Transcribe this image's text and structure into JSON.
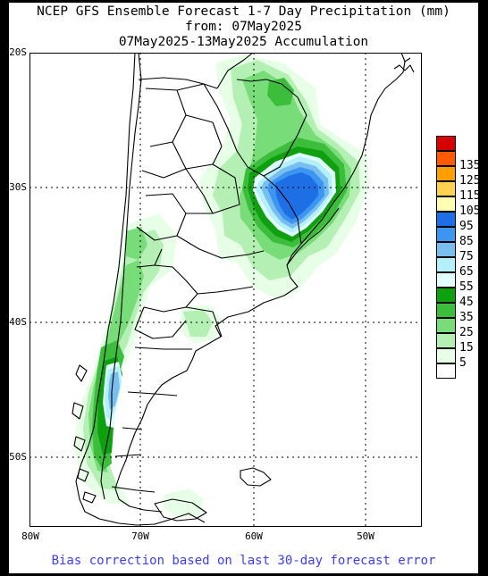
{
  "title": {
    "line1": "NCEP GFS Ensemble Forecast 1-7 Day Precipitation (mm)",
    "line2": "from: 07May2025",
    "line3": "07May2025-13May2025 Accumulation"
  },
  "map": {
    "region": "southern South America",
    "lat_labels": [
      "20S",
      "30S",
      "40S",
      "50S"
    ],
    "lon_labels": [
      "80W",
      "70W",
      "60W",
      "50W"
    ],
    "precip_maximum_region": "southern Brazil / Uruguay, about 95 mm",
    "secondary_maximum_region": "southern Chile, about 65-75 mm"
  },
  "legend": {
    "bins": [
      {
        "label": "",
        "color": "#d70000"
      },
      {
        "label": "135",
        "color": "#ff5a00"
      },
      {
        "label": "125",
        "color": "#ffa000"
      },
      {
        "label": "115",
        "color": "#ffd250"
      },
      {
        "label": "105",
        "color": "#ffffb4"
      },
      {
        "label": "95",
        "color": "#1e6ee6"
      },
      {
        "label": "85",
        "color": "#3c96f0"
      },
      {
        "label": "75",
        "color": "#78bef0"
      },
      {
        "label": "65",
        "color": "#b4f0fa"
      },
      {
        "label": "55",
        "color": "#e1ffff"
      },
      {
        "label": "45",
        "color": "#0fa00f"
      },
      {
        "label": "35",
        "color": "#3cbe3c"
      },
      {
        "label": "25",
        "color": "#78dc78"
      },
      {
        "label": "15",
        "color": "#b4f0b4"
      },
      {
        "label": "5",
        "color": "#e6ffe6"
      },
      {
        "label": "",
        "color": "#ffffff"
      }
    ]
  },
  "footer": "Bias correction based on last 30-day forecast error"
}
